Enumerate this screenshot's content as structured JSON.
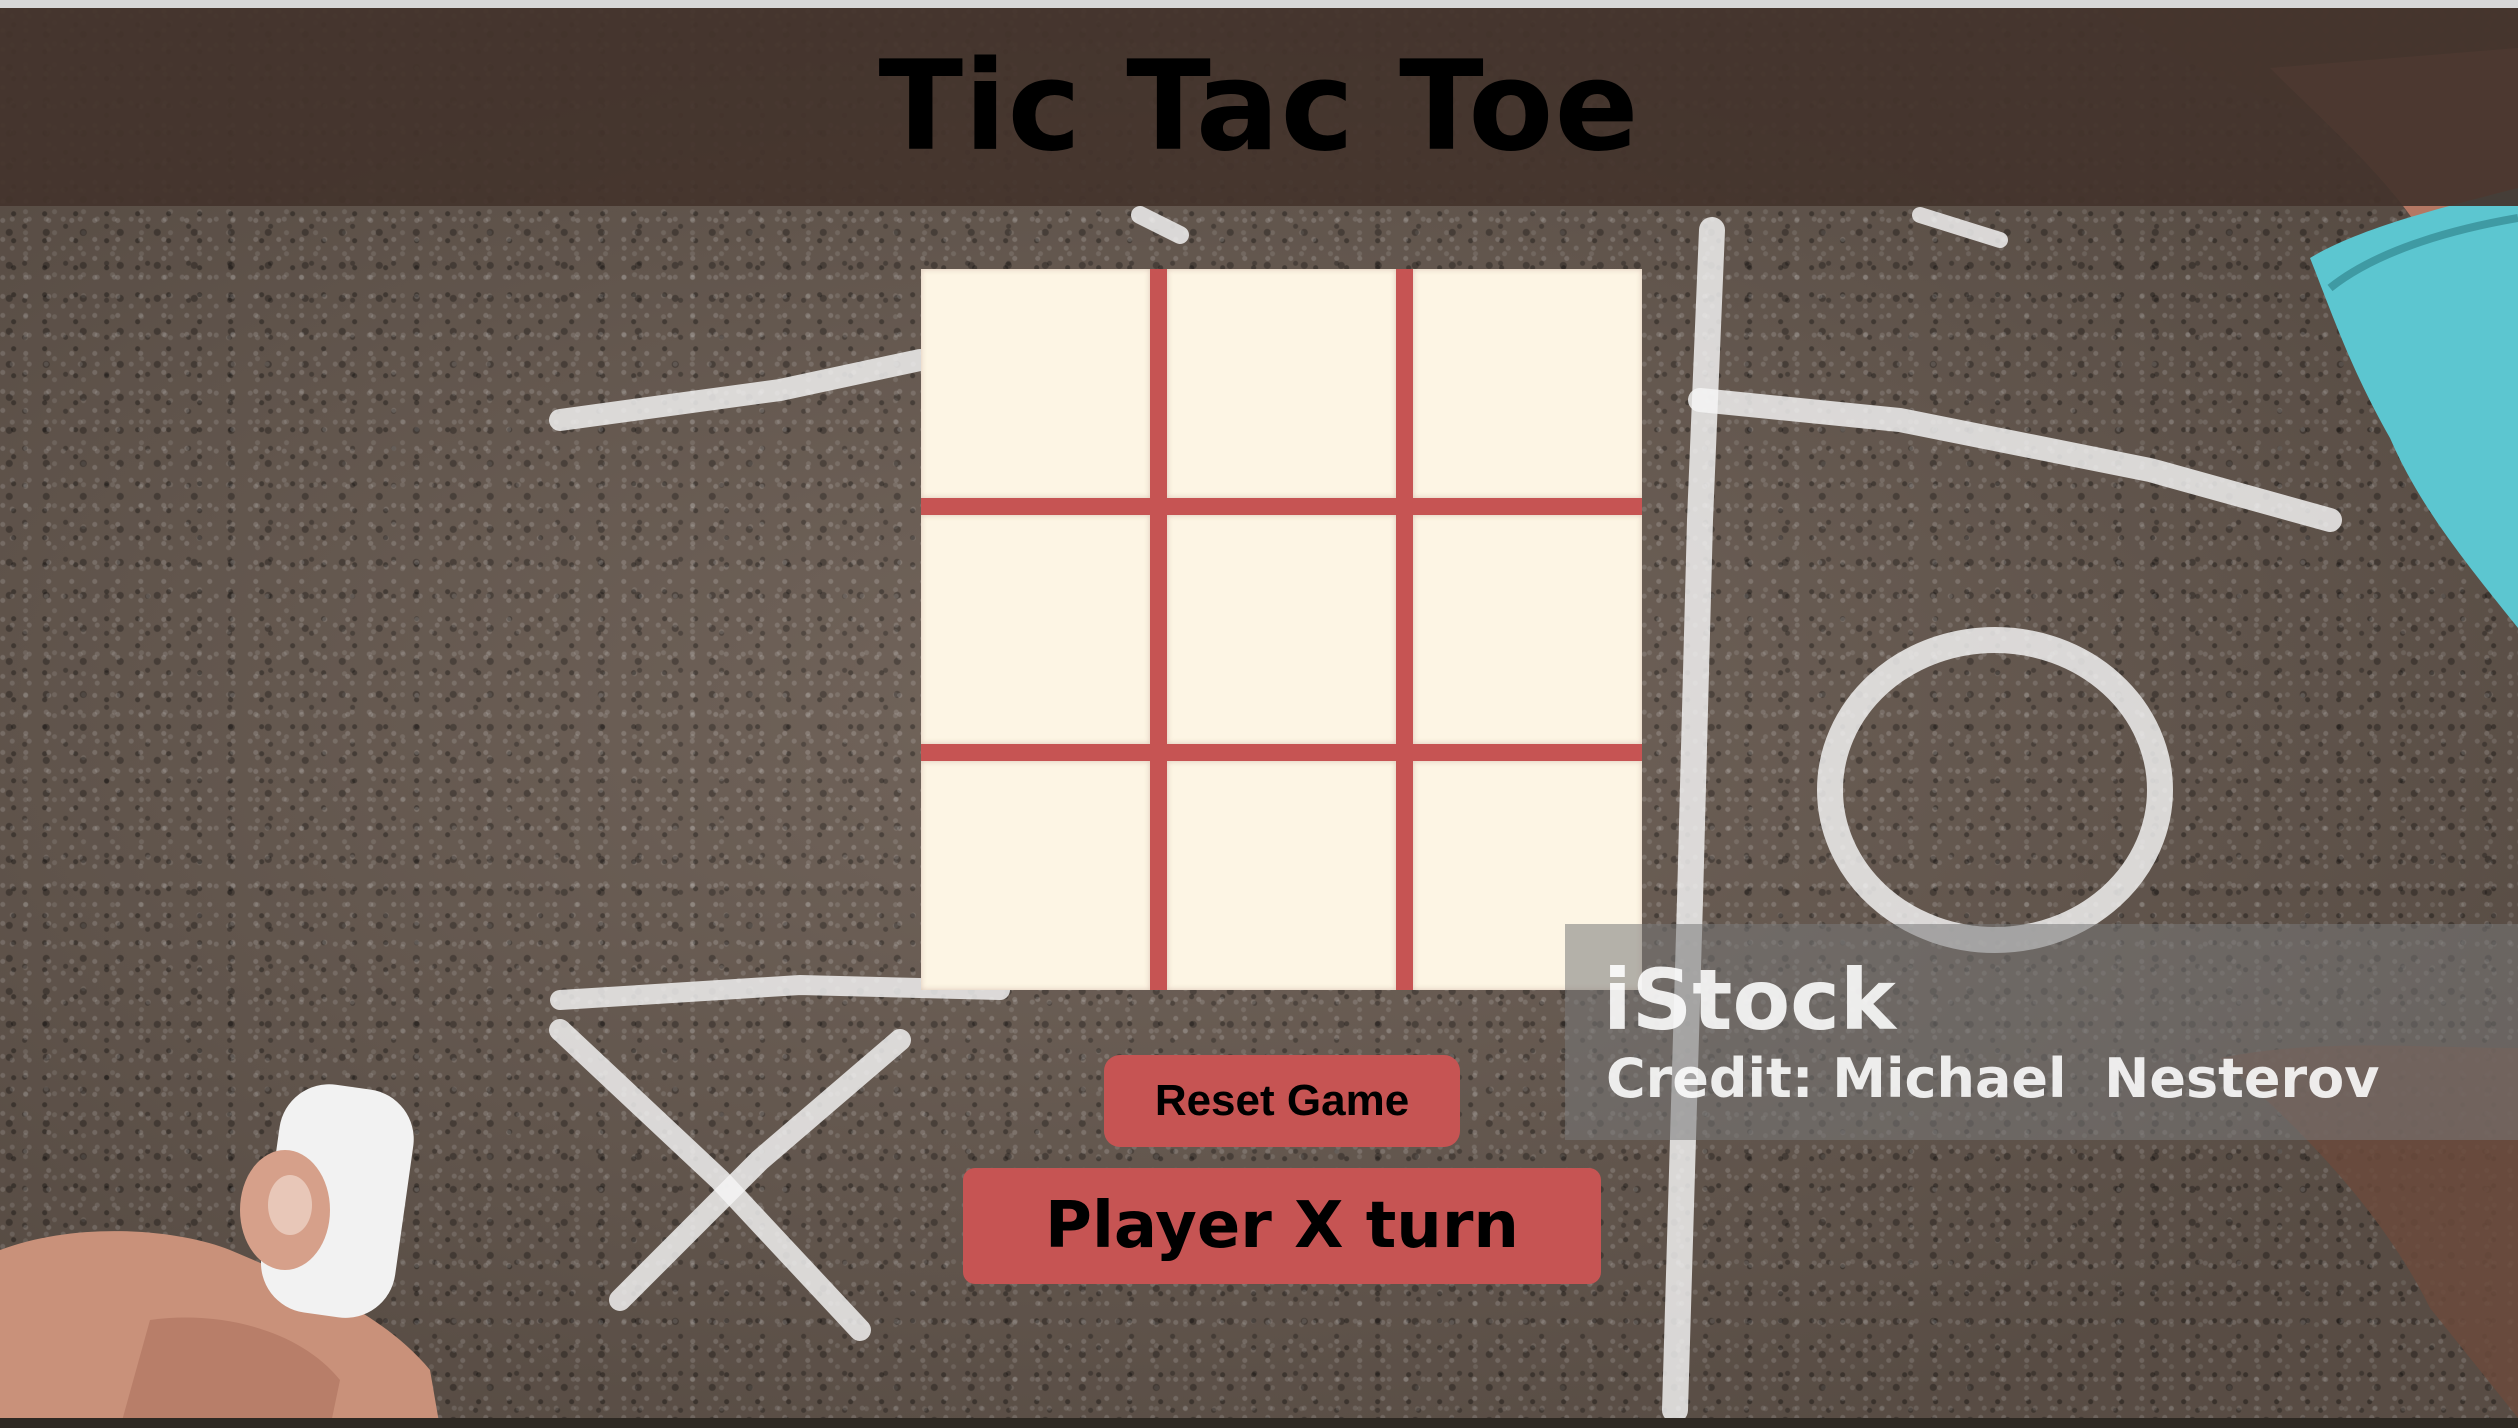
{
  "header": {
    "title": "Tic Tac Toe"
  },
  "board": {
    "cells": [
      "",
      "",
      "",
      "",
      "",
      "",
      "",
      "",
      ""
    ]
  },
  "controls": {
    "reset_label": "Reset Game"
  },
  "status": {
    "text": "Player X turn"
  },
  "watermark": {
    "logo": "iStock",
    "credit": "Credit: Michael  Nesterov"
  },
  "colors": {
    "accent": "#c65453",
    "cell": "#fdf5e4",
    "header": "#44342c"
  }
}
